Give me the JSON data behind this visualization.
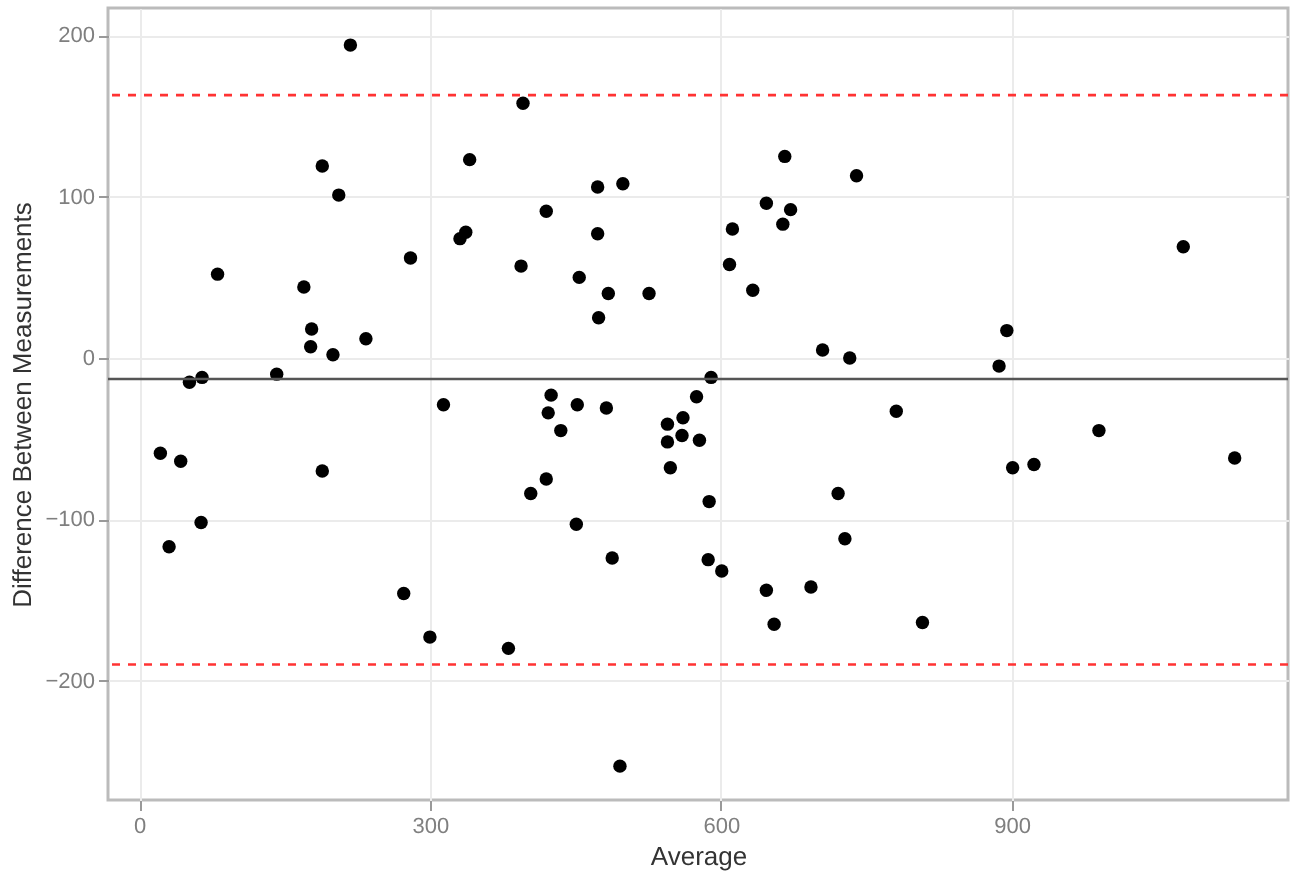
{
  "chart_data": {
    "type": "scatter",
    "xlabel": "Average",
    "ylabel": "Difference Between Measurements",
    "xlim": [
      -32,
      1185
    ],
    "ylim": [
      -274,
      217
    ],
    "xticks": [
      0,
      300,
      600,
      900
    ],
    "yticks": [
      -200,
      -100,
      0,
      100,
      200
    ],
    "grid": true,
    "marker": "circle",
    "series": [
      {
        "color": "#000000",
        "x": [
          218,
          189,
          206,
          81,
          170,
          178,
          177,
          200,
          234,
          280,
          341,
          331,
          337,
          396,
          394,
          420,
          454,
          473,
          473,
          474,
          484,
          499,
          526,
          52,
          65,
          142,
          425,
          666,
          740,
          647,
          672,
          664,
          612,
          609,
          633,
          705,
          733,
          887,
          895,
          1077,
          590,
          575,
          22,
          43,
          31,
          64,
          189,
          273,
          300,
          314,
          381,
          404,
          420,
          422,
          435,
          452,
          451,
          482,
          488,
          496,
          545,
          545,
          561,
          560,
          548,
          578,
          588,
          587,
          601,
          647,
          655,
          693,
          721,
          728,
          781,
          808,
          901,
          923,
          990,
          1130
        ],
        "values": [
          194,
          119,
          101,
          52,
          44,
          18,
          7,
          2,
          12,
          62,
          123,
          74,
          78,
          158,
          57,
          91,
          50,
          106,
          77,
          25,
          40,
          108,
          40,
          -15,
          -12,
          -10,
          -23,
          125,
          113,
          96,
          92,
          83,
          80,
          58,
          42,
          5,
          0,
          -5,
          17,
          69,
          -12,
          -24,
          -59,
          -64,
          -117,
          -102,
          -70,
          -146,
          -173,
          -29,
          -180,
          -84,
          -75,
          -34,
          -45,
          -29,
          -103,
          -31,
          -124,
          -253,
          -41,
          -52,
          -37,
          -48,
          -68,
          -51,
          -89,
          -125,
          -132,
          -144,
          -165,
          -142,
          -84,
          -112,
          -33,
          -164,
          -68,
          -66,
          -45,
          -62
        ]
      }
    ],
    "ref_lines": [
      {
        "axis": "y",
        "value": -13,
        "color": "#555555",
        "line_style": "solid"
      },
      {
        "axis": "y",
        "value": 163,
        "color": "#ff3333",
        "line_style": "dashed"
      },
      {
        "axis": "y",
        "value": -190,
        "color": "#ff3333",
        "line_style": "dashed"
      }
    ]
  }
}
